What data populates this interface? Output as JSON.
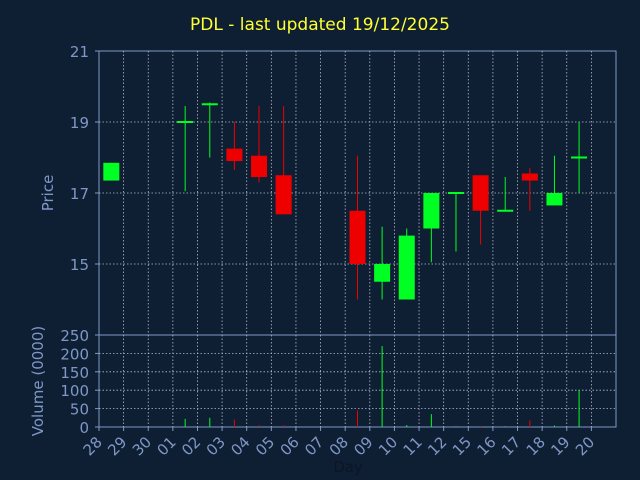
{
  "chart_data": {
    "title": "PDL - last updated 19/12/2025",
    "colors": {
      "background": "#0f1f33",
      "title": "#ffff33",
      "axis_text": "#7f97c7",
      "frame": "#7f97c7",
      "grid": "#b4bccc",
      "up": "#00ff22",
      "down": "#ee0000",
      "xlabel": "#0b1526"
    },
    "price_panel": {
      "type": "candlestick",
      "ylabel": "Price",
      "ylim": [
        13,
        21
      ],
      "yticks": [
        15,
        17,
        19,
        21
      ],
      "grid": true
    },
    "volume_panel": {
      "type": "bar",
      "ylabel": "Volume (0000)",
      "ylim": [
        0,
        250
      ],
      "yticks": [
        0,
        50,
        100,
        150,
        200,
        250
      ],
      "grid": true
    },
    "xlabel": "Day",
    "x_ticks": [
      "28",
      "29",
      "30",
      "01",
      "02",
      "03",
      "04",
      "05",
      "06",
      "07",
      "08",
      "09",
      "10",
      "11",
      "12",
      "15",
      "16",
      "17",
      "18",
      "19",
      "20"
    ],
    "candles": [
      {
        "day": "28",
        "open": 17.35,
        "high": 17.85,
        "low": 17.35,
        "close": 17.85,
        "volume": 0
      },
      {
        "day": "01",
        "open": 19.0,
        "high": 19.45,
        "low": 17.05,
        "close": 19.0,
        "volume": 22
      },
      {
        "day": "02",
        "open": 19.5,
        "high": 19.55,
        "low": 18.0,
        "close": 19.5,
        "volume": 25
      },
      {
        "day": "03",
        "open": 18.25,
        "high": 19.0,
        "low": 17.65,
        "close": 17.9,
        "volume": 20
      },
      {
        "day": "04",
        "open": 18.05,
        "high": 19.45,
        "low": 17.3,
        "close": 17.45,
        "volume": 5
      },
      {
        "day": "05",
        "open": 17.5,
        "high": 19.45,
        "low": 16.4,
        "close": 16.4,
        "volume": 5
      },
      {
        "day": "08",
        "open": 16.5,
        "high": 18.05,
        "low": 14.0,
        "close": 15.0,
        "volume": 45
      },
      {
        "day": "09",
        "open": 14.5,
        "high": 16.05,
        "low": 14.0,
        "close": 15.0,
        "volume": 220
      },
      {
        "day": "10",
        "open": 14.0,
        "high": 16.0,
        "low": 14.0,
        "close": 15.8,
        "volume": 5
      },
      {
        "day": "11",
        "open": 16.0,
        "high": 17.0,
        "low": 15.05,
        "close": 17.0,
        "volume": 35
      },
      {
        "day": "12",
        "open": 17.0,
        "high": 17.0,
        "low": 15.35,
        "close": 17.0,
        "volume": 2
      },
      {
        "day": "15",
        "open": 17.5,
        "high": 17.5,
        "low": 15.55,
        "close": 16.5,
        "volume": 3
      },
      {
        "day": "16",
        "open": 16.5,
        "high": 17.45,
        "low": 16.5,
        "close": 16.5,
        "volume": 2
      },
      {
        "day": "17",
        "open": 17.55,
        "high": 17.7,
        "low": 16.5,
        "close": 17.35,
        "volume": 18
      },
      {
        "day": "18",
        "open": 16.65,
        "high": 18.05,
        "low": 16.65,
        "close": 17.0,
        "volume": 4
      },
      {
        "day": "19",
        "open": 18.0,
        "high": 19.0,
        "low": 17.0,
        "close": 18.0,
        "volume": 100
      }
    ]
  }
}
